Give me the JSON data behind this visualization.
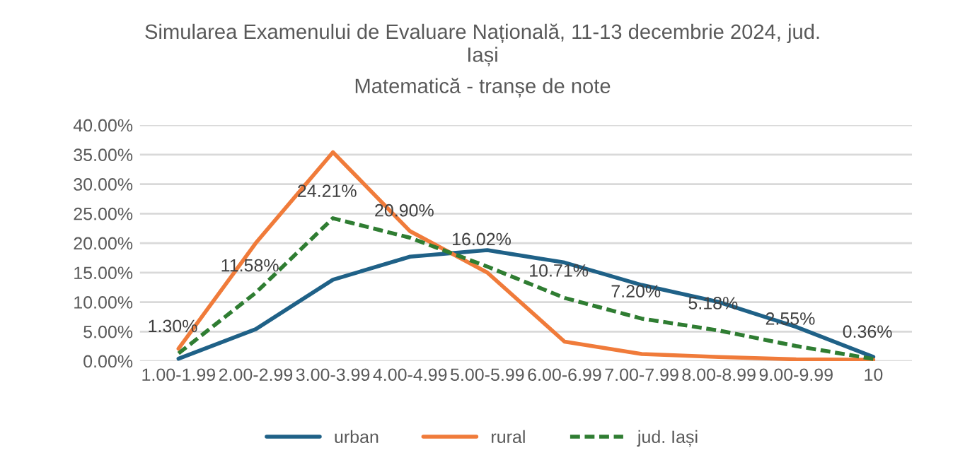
{
  "chart_data": {
    "type": "line",
    "title": "Simularea Examenului de Evaluare Națională, 11-13 decembrie 2024, jud.\nIași",
    "subtitle": "Matematică - tranșe de note",
    "categories": [
      "1.00-1.99",
      "2.00-2.99",
      "3.00-3.99",
      "4.00-4.99",
      "5.00-5.99",
      "6.00-6.99",
      "7.00-7.99",
      "8.00-8.99",
      "9.00-9.99",
      "10"
    ],
    "series": [
      {
        "name": "urban",
        "color": "#1f6187",
        "line_style": "solid",
        "values": [
          0.4,
          5.4,
          13.8,
          17.7,
          18.8,
          16.7,
          12.9,
          10.0,
          5.8,
          0.7
        ]
      },
      {
        "name": "rural",
        "color": "#f07b3a",
        "line_style": "solid",
        "values": [
          2.1,
          20.0,
          35.4,
          22.0,
          15.0,
          3.3,
          1.2,
          0.7,
          0.3,
          0.2
        ]
      },
      {
        "name": "jud. Iași",
        "color": "#2f7d32",
        "line_style": "dashed",
        "values": [
          1.3,
          11.58,
          24.21,
          20.9,
          16.02,
          10.71,
          7.2,
          5.18,
          2.55,
          0.36
        ],
        "value_labels": [
          "1.30%",
          "11.58%",
          "24.21%",
          "20.90%",
          "16.02%",
          "10.71%",
          "7.20%",
          "5.18%",
          "2.55%",
          "0.36%"
        ]
      }
    ],
    "ylim": [
      0,
      40
    ],
    "yticks": [
      {
        "value": 0,
        "label": "0.00%"
      },
      {
        "value": 5,
        "label": "5.00%"
      },
      {
        "value": 10,
        "label": "10.00%"
      },
      {
        "value": 15,
        "label": "15.00%"
      },
      {
        "value": 20,
        "label": "20.00%"
      },
      {
        "value": 25,
        "label": "25.00%"
      },
      {
        "value": 30,
        "label": "30.00%"
      },
      {
        "value": 35,
        "label": "35.00%"
      },
      {
        "value": 40,
        "label": "40.00%"
      }
    ],
    "grid": "y",
    "legend": "bottom"
  }
}
